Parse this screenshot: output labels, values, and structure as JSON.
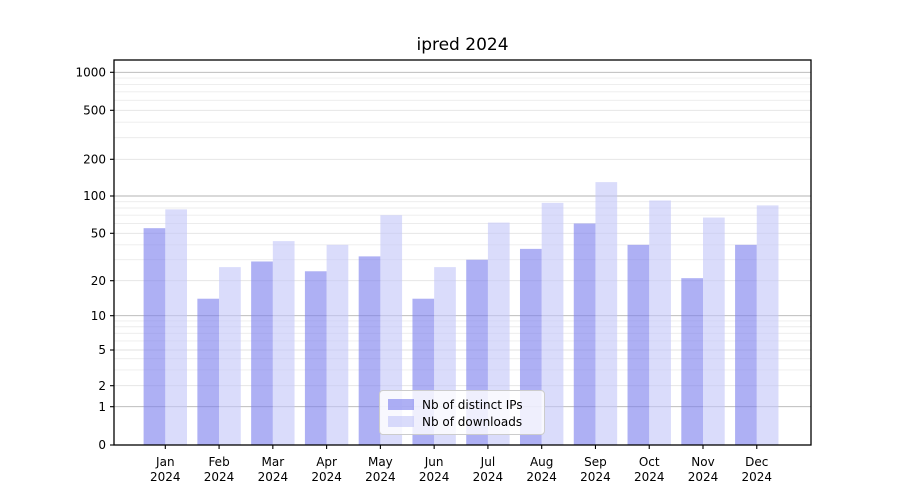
{
  "title": "ipred 2024",
  "chart_data": {
    "type": "bar",
    "title": "ipred 2024",
    "categories": [
      "Jan 2024",
      "Feb 2024",
      "Mar 2024",
      "Apr 2024",
      "May 2024",
      "Jun 2024",
      "Jul 2024",
      "Aug 2024",
      "Sep 2024",
      "Oct 2024",
      "Nov 2024",
      "Dec 2024"
    ],
    "month_labels": [
      "Jan",
      "Feb",
      "Mar",
      "Apr",
      "May",
      "Jun",
      "Jul",
      "Aug",
      "Sep",
      "Oct",
      "Nov",
      "Dec"
    ],
    "year_label": "2024",
    "series": [
      {
        "name": "Nb of distinct IPs",
        "color": "#7c7fee",
        "fill_opacity": 0.62,
        "values": [
          55,
          14,
          29,
          24,
          32,
          14,
          30,
          37,
          60,
          40,
          21,
          40
        ]
      },
      {
        "name": "Nb of downloads",
        "color": "#c4c7f8",
        "fill_opacity": 0.62,
        "values": [
          78,
          26,
          43,
          40,
          70,
          26,
          61,
          88,
          130,
          92,
          67,
          84
        ]
      }
    ],
    "yscale": "symlog",
    "yticks": [
      0,
      1,
      2,
      5,
      10,
      20,
      50,
      100,
      200,
      500,
      1000
    ],
    "ylim": [
      0,
      1000
    ],
    "xlabel": "",
    "ylabel": "",
    "grid": true,
    "legend_position": "lower center"
  },
  "colors": {
    "major_gridline": "#b3b3b3",
    "labeled_minor_gridline": "#e2e2e2",
    "minor_gridline": "#ececec",
    "axis_frame": "#000000",
    "tick_label": "#000000",
    "legend_border": "#cccccc"
  }
}
